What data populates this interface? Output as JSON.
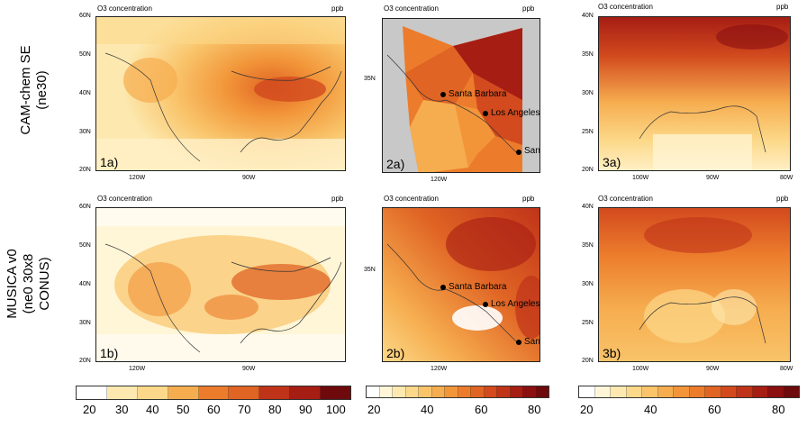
{
  "row_labels": {
    "top": [
      "CAM-chem SE",
      "(ne30)"
    ],
    "bottom": [
      "MUSICA v0",
      "(ne0 30x8",
      "CONUS)"
    ]
  },
  "panel_title": "O3 concentration",
  "panel_unit": "ppb",
  "panels": {
    "p1a": {
      "label": "1a)",
      "lat_ticks": [
        "60N",
        "50N",
        "40N",
        "30N",
        "20N"
      ],
      "lon_ticks": [
        "120W",
        "90W"
      ]
    },
    "p2a": {
      "label": "2a)",
      "lat_ticks": [
        "35N"
      ],
      "lon_ticks": [
        "120W"
      ]
    },
    "p3a": {
      "label": "3a)",
      "lat_ticks": [
        "40N",
        "35N",
        "30N",
        "25N",
        "20N"
      ],
      "lon_ticks": [
        "100W",
        "90W",
        "80W"
      ]
    },
    "p1b": {
      "label": "1b)",
      "lat_ticks": [
        "60N",
        "50N",
        "40N",
        "30N",
        "20N"
      ],
      "lon_ticks": [
        "120W",
        "90W"
      ]
    },
    "p2b": {
      "label": "2b)",
      "lat_ticks": [
        "35N"
      ],
      "lon_ticks": [
        "120W"
      ]
    },
    "p3b": {
      "label": "3b)",
      "lat_ticks": [
        "40N",
        "35N",
        "30N",
        "25N",
        "20N"
      ],
      "lon_ticks": [
        "100W",
        "90W",
        "80W"
      ]
    }
  },
  "cities": [
    "Santa Barbara",
    "Los Angeles",
    "San Diego"
  ],
  "colorbars": {
    "left": {
      "labels": [
        "20",
        "30",
        "40",
        "50",
        "60",
        "70",
        "80",
        "90",
        "100"
      ]
    },
    "mid": {
      "labels": [
        "20",
        "40",
        "60",
        "80"
      ]
    },
    "right": {
      "labels": [
        "20",
        "40",
        "60",
        "80"
      ]
    }
  },
  "colors": {
    "scale": [
      "#ffffff",
      "#fff6d8",
      "#fde9b0",
      "#fcd98a",
      "#f9c46a",
      "#f6ad4f",
      "#f29539",
      "#ec7c2c",
      "#e06424",
      "#d24a1e",
      "#bf3319",
      "#a61d14",
      "#8b0f10",
      "#6e0a0c"
    ]
  }
}
